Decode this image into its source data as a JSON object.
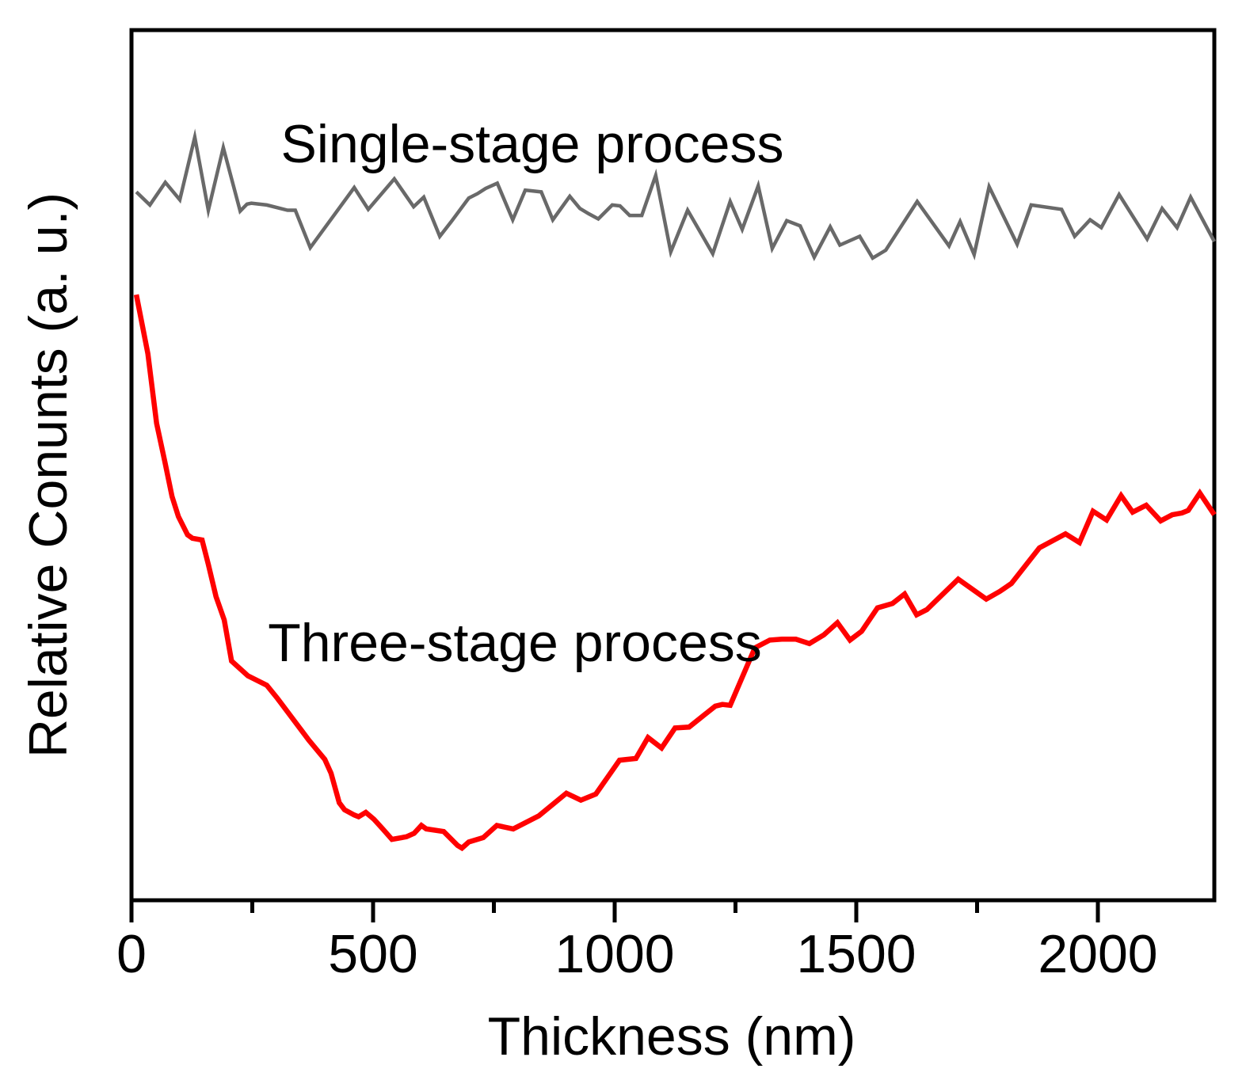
{
  "figure": {
    "background": "#ffffff",
    "axis_color": "#000000"
  },
  "chart_data": {
    "type": "line",
    "title": "",
    "xlabel": "Thickness (nm)",
    "ylabel": "Relative Conunts (a. u.)",
    "xlim": [
      0,
      2241
    ],
    "ylim": [
      0,
      100
    ],
    "y_units": "arbitrary (no y tick labels shown)",
    "grid": false,
    "legend_position": "inline-annotations",
    "x_major_ticks": [
      0,
      500,
      1000,
      1500,
      2000
    ],
    "x_minor_ticks": [
      250,
      750,
      1250,
      1750
    ],
    "y_ticks": [],
    "annotations": [
      {
        "text": "Single-stage process",
        "color": "#000000",
        "x": 830,
        "y": 84.8
      },
      {
        "text": "Three-stage process",
        "color": "#ff0000",
        "x": 793,
        "y": 27.5
      }
    ],
    "series": [
      {
        "name": "Single-stage process",
        "slug": "single-stage",
        "color": "#696969",
        "stroke_width": 4.5,
        "points": [
          [
            10,
            81.4
          ],
          [
            38,
            79.9
          ],
          [
            70,
            82.5
          ],
          [
            100,
            80.5
          ],
          [
            131,
            87.7
          ],
          [
            159,
            79.3
          ],
          [
            190,
            86.5
          ],
          [
            225,
            79.2
          ],
          [
            239,
            80.0
          ],
          [
            248,
            80.1
          ],
          [
            280,
            79.9
          ],
          [
            323,
            79.3
          ],
          [
            339,
            79.3
          ],
          [
            370,
            75.0
          ],
          [
            461,
            81.9
          ],
          [
            490,
            79.4
          ],
          [
            544,
            82.9
          ],
          [
            584,
            79.7
          ],
          [
            605,
            80.8
          ],
          [
            638,
            76.3
          ],
          [
            662,
            78.0
          ],
          [
            698,
            80.7
          ],
          [
            716,
            81.2
          ],
          [
            733,
            81.8
          ],
          [
            757,
            82.4
          ],
          [
            789,
            78.2
          ],
          [
            815,
            81.6
          ],
          [
            848,
            81.4
          ],
          [
            872,
            78.2
          ],
          [
            907,
            80.9
          ],
          [
            928,
            79.5
          ],
          [
            946,
            78.9
          ],
          [
            966,
            78.3
          ],
          [
            995,
            79.9
          ],
          [
            1011,
            79.8
          ],
          [
            1031,
            78.7
          ],
          [
            1056,
            78.7
          ],
          [
            1085,
            83.3
          ],
          [
            1116,
            74.5
          ],
          [
            1151,
            79.3
          ],
          [
            1203,
            74.3
          ],
          [
            1239,
            80.3
          ],
          [
            1264,
            77.1
          ],
          [
            1297,
            82.1
          ],
          [
            1326,
            74.9
          ],
          [
            1356,
            78.1
          ],
          [
            1384,
            77.5
          ],
          [
            1413,
            73.9
          ],
          [
            1446,
            77.4
          ],
          [
            1466,
            75.3
          ],
          [
            1507,
            76.3
          ],
          [
            1534,
            73.8
          ],
          [
            1561,
            74.7
          ],
          [
            1626,
            80.3
          ],
          [
            1692,
            75.2
          ],
          [
            1715,
            78.0
          ],
          [
            1744,
            74.2
          ],
          [
            1775,
            82.0
          ],
          [
            1833,
            75.4
          ],
          [
            1862,
            79.9
          ],
          [
            1925,
            79.4
          ],
          [
            1952,
            76.3
          ],
          [
            1984,
            78.2
          ],
          [
            2007,
            77.3
          ],
          [
            2044,
            81.1
          ],
          [
            2102,
            76.0
          ],
          [
            2133,
            79.5
          ],
          [
            2164,
            77.3
          ],
          [
            2192,
            80.8
          ],
          [
            2241,
            75.7
          ]
        ]
      },
      {
        "name": "Three-stage process",
        "slug": "three-stage",
        "color": "#ff0000",
        "stroke_width": 6.5,
        "points": [
          [
            10,
            69.6
          ],
          [
            34,
            62.8
          ],
          [
            52,
            54.8
          ],
          [
            69,
            50.4
          ],
          [
            84,
            46.4
          ],
          [
            97,
            44.1
          ],
          [
            116,
            42.0
          ],
          [
            126,
            41.6
          ],
          [
            146,
            41.4
          ],
          [
            159,
            38.6
          ],
          [
            175,
            34.9
          ],
          [
            192,
            32.2
          ],
          [
            207,
            27.5
          ],
          [
            241,
            25.8
          ],
          [
            280,
            24.7
          ],
          [
            302,
            23.2
          ],
          [
            367,
            18.4
          ],
          [
            400,
            16.2
          ],
          [
            413,
            14.6
          ],
          [
            430,
            11.2
          ],
          [
            441,
            10.4
          ],
          [
            461,
            9.8
          ],
          [
            470,
            9.6
          ],
          [
            485,
            10.1
          ],
          [
            502,
            9.3
          ],
          [
            520,
            8.2
          ],
          [
            539,
            7.0
          ],
          [
            559,
            7.2
          ],
          [
            569,
            7.3
          ],
          [
            585,
            7.7
          ],
          [
            600,
            8.6
          ],
          [
            610,
            8.2
          ],
          [
            646,
            7.9
          ],
          [
            675,
            6.3
          ],
          [
            684,
            6.0
          ],
          [
            698,
            6.7
          ],
          [
            728,
            7.2
          ],
          [
            756,
            8.6
          ],
          [
            790,
            8.2
          ],
          [
            843,
            9.7
          ],
          [
            900,
            12.3
          ],
          [
            930,
            11.5
          ],
          [
            961,
            12.2
          ],
          [
            1010,
            16.1
          ],
          [
            1044,
            16.3
          ],
          [
            1069,
            18.7
          ],
          [
            1097,
            17.5
          ],
          [
            1125,
            19.8
          ],
          [
            1154,
            19.9
          ],
          [
            1208,
            22.3
          ],
          [
            1223,
            22.5
          ],
          [
            1239,
            22.4
          ],
          [
            1290,
            29.0
          ],
          [
            1321,
            29.9
          ],
          [
            1346,
            30.0
          ],
          [
            1375,
            30.0
          ],
          [
            1403,
            29.5
          ],
          [
            1433,
            30.5
          ],
          [
            1461,
            31.9
          ],
          [
            1487,
            29.9
          ],
          [
            1511,
            30.9
          ],
          [
            1544,
            33.6
          ],
          [
            1575,
            34.1
          ],
          [
            1600,
            35.2
          ],
          [
            1625,
            32.8
          ],
          [
            1646,
            33.4
          ],
          [
            1711,
            36.9
          ],
          [
            1769,
            34.6
          ],
          [
            1797,
            35.5
          ],
          [
            1821,
            36.4
          ],
          [
            1879,
            40.5
          ],
          [
            1933,
            42.1
          ],
          [
            1962,
            41.1
          ],
          [
            1990,
            44.7
          ],
          [
            2018,
            43.7
          ],
          [
            2048,
            46.5
          ],
          [
            2072,
            44.6
          ],
          [
            2100,
            45.4
          ],
          [
            2130,
            43.6
          ],
          [
            2154,
            44.3
          ],
          [
            2174,
            44.5
          ],
          [
            2187,
            44.8
          ],
          [
            2211,
            46.8
          ],
          [
            2241,
            44.3
          ]
        ]
      }
    ]
  }
}
